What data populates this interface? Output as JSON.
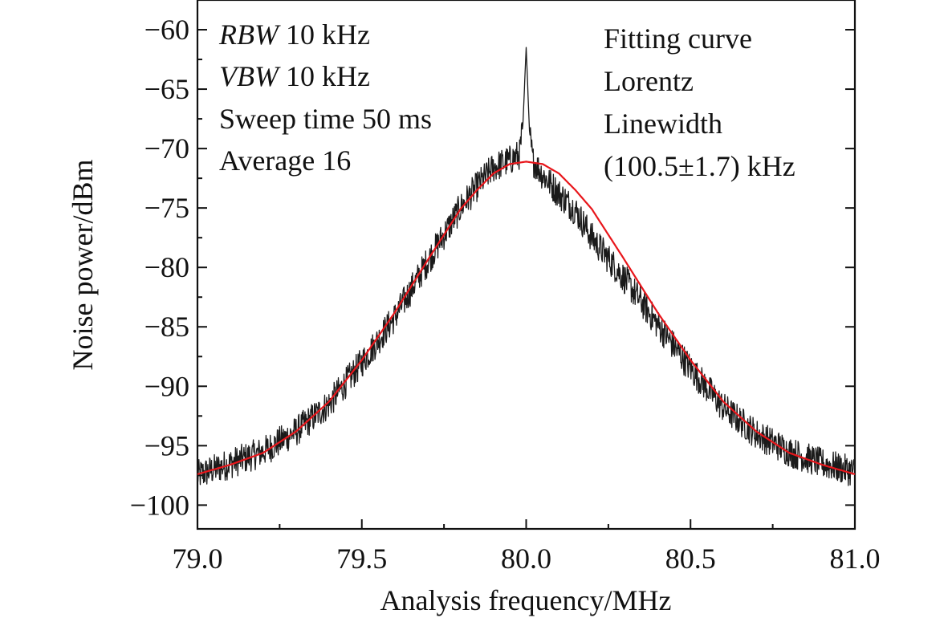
{
  "chart_data": {
    "type": "line",
    "title": "",
    "xlabel": "Analysis frequency/MHz",
    "ylabel": "Noise power/dBm",
    "xlim": [
      79.0,
      81.0
    ],
    "ylim": [
      -102,
      -57.5
    ],
    "xticks": [
      79.0,
      79.5,
      80.0,
      80.5,
      81.0
    ],
    "xtick_labels": [
      "79.0",
      "79.5",
      "80.0",
      "80.5",
      "81.0"
    ],
    "yticks": [
      -60,
      -65,
      -70,
      -75,
      -80,
      -85,
      -90,
      -95,
      -100
    ],
    "ytick_labels": [
      "−60",
      "−65",
      "−70",
      "−75",
      "−80",
      "−85",
      "−90",
      "−95",
      "−100"
    ],
    "grid": false,
    "legend": "none",
    "annotations_left": [
      {
        "italic": "RBW",
        "rest": " 10 kHz"
      },
      {
        "italic": "VBW",
        "rest": " 10 kHz"
      },
      {
        "italic": "",
        "rest": "Sweep time 50 ms"
      },
      {
        "italic": "",
        "rest": "Average 16"
      }
    ],
    "annotations_right": [
      "Fitting curve",
      "Lorentz",
      "Linewidth",
      "(100.5±1.7) kHz"
    ],
    "series": [
      {
        "kind": "measured-spectrum",
        "color": "#1a1a1a",
        "x": [
          79.0,
          79.1,
          79.2,
          79.3,
          79.4,
          79.5,
          79.6,
          79.7,
          79.8,
          79.85,
          79.9,
          79.95,
          79.98,
          79.99,
          80.0,
          80.01,
          80.02,
          80.05,
          80.1,
          80.15,
          80.2,
          80.3,
          80.4,
          80.5,
          80.6,
          80.7,
          80.8,
          80.9,
          81.0
        ],
        "y": [
          -97.5,
          -96.5,
          -95.5,
          -93.8,
          -91.5,
          -88.0,
          -84.2,
          -79.5,
          -75.0,
          -73.2,
          -71.6,
          -71.0,
          -70.5,
          -68.0,
          -61.5,
          -68.5,
          -71.0,
          -72.2,
          -73.8,
          -75.2,
          -77.5,
          -81.0,
          -84.8,
          -88.5,
          -91.8,
          -94.0,
          -95.5,
          -96.5,
          -97.2
        ]
      },
      {
        "kind": "lorentz-fit",
        "color": "#e8161b",
        "x": [
          79.0,
          79.1,
          79.2,
          79.3,
          79.4,
          79.5,
          79.6,
          79.7,
          79.8,
          79.85,
          79.9,
          79.95,
          80.0,
          80.05,
          80.1,
          80.15,
          80.2,
          80.3,
          80.4,
          80.5,
          80.6,
          80.7,
          80.8,
          80.9,
          81.0
        ],
        "y": [
          -97.4,
          -96.6,
          -95.6,
          -93.8,
          -91.3,
          -87.8,
          -83.8,
          -79.4,
          -75.1,
          -73.5,
          -72.1,
          -71.3,
          -71.1,
          -71.3,
          -72.1,
          -73.5,
          -75.1,
          -79.4,
          -83.8,
          -87.8,
          -91.3,
          -93.8,
          -95.6,
          -96.6,
          -97.4
        ]
      }
    ]
  }
}
